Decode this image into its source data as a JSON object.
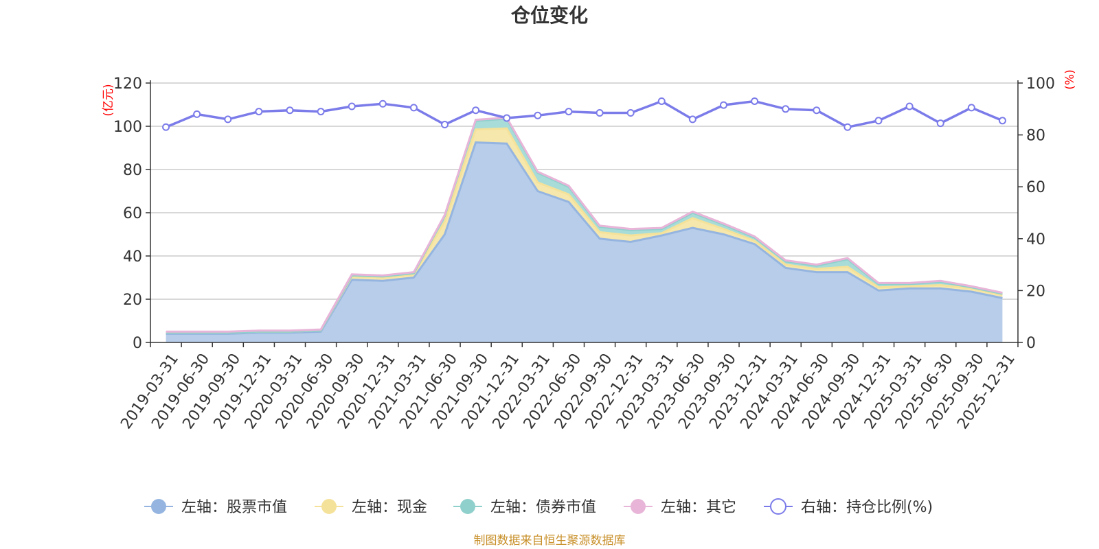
{
  "chart_data": {
    "type": "area",
    "title": "仓位变化",
    "left_unit": "(亿元)",
    "right_unit": "(%)",
    "categories": [
      "2019-03-31",
      "2019-06-30",
      "2019-09-30",
      "2019-12-31",
      "2020-03-31",
      "2020-06-30",
      "2020-09-30",
      "2020-12-31",
      "2021-03-31",
      "2021-06-30",
      "2021-09-30",
      "2021-12-31",
      "2022-03-31",
      "2022-06-30",
      "2022-09-30",
      "2022-12-31",
      "2023-03-31",
      "2023-06-30",
      "2023-09-30",
      "2023-12-31",
      "2024-03-31",
      "2024-06-30",
      "2024-09-30",
      "2024-12-31",
      "2025-03-31",
      "2025-06-30",
      "2025-09-30",
      "2025-12-31"
    ],
    "left_axis": {
      "min": 0,
      "max": 120,
      "ticks": [
        0,
        20,
        40,
        60,
        80,
        100,
        120
      ]
    },
    "right_axis": {
      "min": 0,
      "max": 100,
      "ticks": [
        0,
        20,
        40,
        60,
        80,
        100
      ]
    },
    "stacked_series": [
      {
        "name": "左轴：股票市值",
        "color": "#95b5e0",
        "fill": "#b7cdea",
        "values": [
          4,
          4,
          4,
          4.5,
          4.5,
          5,
          29,
          28.5,
          30,
          50,
          92.5,
          92,
          70,
          65,
          48,
          46.5,
          49.5,
          53,
          50,
          45.5,
          34.5,
          32.5,
          32.5,
          24,
          25,
          25,
          23.5,
          20.5
        ]
      },
      {
        "name": "左轴：现金",
        "color": "#f5e29a",
        "fill": "#f6e7ac",
        "values": [
          0.5,
          0.5,
          0.5,
          0.5,
          0.5,
          0.5,
          1.5,
          1.5,
          1.5,
          6,
          6,
          7,
          4,
          3.5,
          3,
          3,
          1,
          4.5,
          2.5,
          1.5,
          1.5,
          1.5,
          2.5,
          1.5,
          1,
          1.5,
          1.5,
          1.5
        ]
      },
      {
        "name": "左轴：债券市值",
        "color": "#8fd0cc",
        "fill": "#a8dcd8",
        "values": [
          0,
          0,
          0,
          0,
          0,
          0,
          0.5,
          0.5,
          0.5,
          2.5,
          4,
          4.5,
          4.5,
          3.5,
          2.5,
          2.5,
          2,
          2.5,
          2,
          1.5,
          1.5,
          1.5,
          3.5,
          1.5,
          1,
          1.5,
          0.5,
          0.5
        ]
      },
      {
        "name": "左轴：其它",
        "color": "#e8b5d8",
        "fill": "#efc7e3",
        "values": [
          0.5,
          0.5,
          0.5,
          0.5,
          0.5,
          0.5,
          0.5,
          0.5,
          0.5,
          0.5,
          0.5,
          0.5,
          0.5,
          0.5,
          0.5,
          0.5,
          0.5,
          0.5,
          0.5,
          0.5,
          0.5,
          0.5,
          0.5,
          0.5,
          0.5,
          0.5,
          0.5,
          0.5
        ]
      }
    ],
    "line_series": {
      "name": "右轴：持仓比例(%)",
      "color": "#7b7bea",
      "values": [
        83,
        88,
        86,
        89,
        89.5,
        89,
        91,
        92,
        90.5,
        84,
        89.5,
        86.5,
        87.5,
        89,
        88.5,
        88.5,
        93,
        86,
        91.5,
        93,
        90,
        89.5,
        83,
        85.5,
        91,
        84.5,
        90.5,
        85.5
      ]
    }
  },
  "source_note": "制图数据来自恒生聚源数据库"
}
